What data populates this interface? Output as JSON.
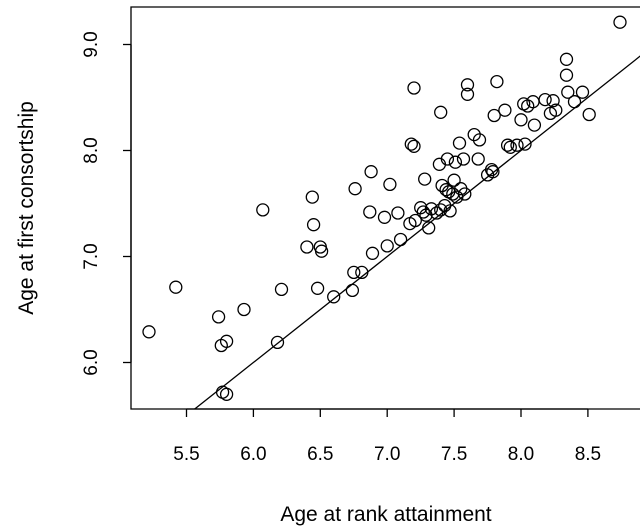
{
  "chart_data": {
    "type": "scatter",
    "title": "",
    "xlabel": "Age at rank attainment",
    "ylabel": "Age at first consortship",
    "xlim": [
      5.15,
      8.85
    ],
    "ylim": [
      5.45,
      9.35
    ],
    "xticks": [
      "5.5",
      "6.0",
      "6.5",
      "7.0",
      "7.5",
      "8.0",
      "8.5"
    ],
    "yticks": [
      "6.0",
      "7.0",
      "8.0",
      "9.0"
    ],
    "reference_line": {
      "slope": 1,
      "intercept": 0
    },
    "grid": false,
    "points": [
      {
        "x": 5.22,
        "y": 6.29
      },
      {
        "x": 5.42,
        "y": 6.71
      },
      {
        "x": 5.74,
        "y": 6.43
      },
      {
        "x": 5.76,
        "y": 6.16
      },
      {
        "x": 5.8,
        "y": 6.2
      },
      {
        "x": 5.77,
        "y": 5.72
      },
      {
        "x": 5.8,
        "y": 5.7
      },
      {
        "x": 5.93,
        "y": 6.5
      },
      {
        "x": 6.07,
        "y": 7.44
      },
      {
        "x": 6.18,
        "y": 6.19
      },
      {
        "x": 6.21,
        "y": 6.69
      },
      {
        "x": 6.4,
        "y": 7.09
      },
      {
        "x": 6.44,
        "y": 7.56
      },
      {
        "x": 6.45,
        "y": 7.3
      },
      {
        "x": 6.48,
        "y": 6.7
      },
      {
        "x": 6.5,
        "y": 7.09
      },
      {
        "x": 6.51,
        "y": 7.05
      },
      {
        "x": 6.6,
        "y": 6.62
      },
      {
        "x": 6.74,
        "y": 6.68
      },
      {
        "x": 6.75,
        "y": 6.85
      },
      {
        "x": 6.76,
        "y": 7.64
      },
      {
        "x": 6.81,
        "y": 6.85
      },
      {
        "x": 6.87,
        "y": 7.42
      },
      {
        "x": 6.88,
        "y": 7.8
      },
      {
        "x": 6.89,
        "y": 7.03
      },
      {
        "x": 6.98,
        "y": 7.37
      },
      {
        "x": 7.0,
        "y": 7.1
      },
      {
        "x": 7.02,
        "y": 7.68
      },
      {
        "x": 7.08,
        "y": 7.41
      },
      {
        "x": 7.1,
        "y": 7.16
      },
      {
        "x": 7.18,
        "y": 8.06
      },
      {
        "x": 7.2,
        "y": 8.04
      },
      {
        "x": 7.2,
        "y": 8.59
      },
      {
        "x": 7.17,
        "y": 7.31
      },
      {
        "x": 7.21,
        "y": 7.34
      },
      {
        "x": 7.25,
        "y": 7.46
      },
      {
        "x": 7.27,
        "y": 7.42
      },
      {
        "x": 7.28,
        "y": 7.73
      },
      {
        "x": 7.29,
        "y": 7.39
      },
      {
        "x": 7.31,
        "y": 7.27
      },
      {
        "x": 7.33,
        "y": 7.45
      },
      {
        "x": 7.37,
        "y": 7.41
      },
      {
        "x": 7.39,
        "y": 7.87
      },
      {
        "x": 7.4,
        "y": 8.36
      },
      {
        "x": 7.4,
        "y": 7.44
      },
      {
        "x": 7.41,
        "y": 7.67
      },
      {
        "x": 7.43,
        "y": 7.48
      },
      {
        "x": 7.44,
        "y": 7.63
      },
      {
        "x": 7.45,
        "y": 7.92
      },
      {
        "x": 7.46,
        "y": 7.61
      },
      {
        "x": 7.47,
        "y": 7.43
      },
      {
        "x": 7.49,
        "y": 7.59
      },
      {
        "x": 7.5,
        "y": 7.72
      },
      {
        "x": 7.51,
        "y": 7.89
      },
      {
        "x": 7.52,
        "y": 7.56
      },
      {
        "x": 7.54,
        "y": 8.07
      },
      {
        "x": 7.55,
        "y": 7.64
      },
      {
        "x": 7.57,
        "y": 7.92
      },
      {
        "x": 7.58,
        "y": 7.59
      },
      {
        "x": 7.6,
        "y": 8.62
      },
      {
        "x": 7.6,
        "y": 8.53
      },
      {
        "x": 7.65,
        "y": 8.15
      },
      {
        "x": 7.68,
        "y": 7.92
      },
      {
        "x": 7.69,
        "y": 8.1
      },
      {
        "x": 7.75,
        "y": 7.77
      },
      {
        "x": 7.78,
        "y": 7.82
      },
      {
        "x": 7.79,
        "y": 7.8
      },
      {
        "x": 7.8,
        "y": 8.33
      },
      {
        "x": 7.82,
        "y": 8.65
      },
      {
        "x": 7.88,
        "y": 8.38
      },
      {
        "x": 7.9,
        "y": 8.05
      },
      {
        "x": 7.92,
        "y": 8.03
      },
      {
        "x": 7.97,
        "y": 8.05
      },
      {
        "x": 8.0,
        "y": 8.29
      },
      {
        "x": 8.02,
        "y": 8.44
      },
      {
        "x": 8.03,
        "y": 8.06
      },
      {
        "x": 8.05,
        "y": 8.42
      },
      {
        "x": 8.09,
        "y": 8.46
      },
      {
        "x": 8.1,
        "y": 8.24
      },
      {
        "x": 8.18,
        "y": 8.48
      },
      {
        "x": 8.22,
        "y": 8.35
      },
      {
        "x": 8.24,
        "y": 8.47
      },
      {
        "x": 8.26,
        "y": 8.38
      },
      {
        "x": 8.34,
        "y": 8.86
      },
      {
        "x": 8.34,
        "y": 8.71
      },
      {
        "x": 8.35,
        "y": 8.55
      },
      {
        "x": 8.4,
        "y": 8.46
      },
      {
        "x": 8.46,
        "y": 8.55
      },
      {
        "x": 8.51,
        "y": 8.34
      },
      {
        "x": 8.74,
        "y": 9.21
      }
    ]
  }
}
